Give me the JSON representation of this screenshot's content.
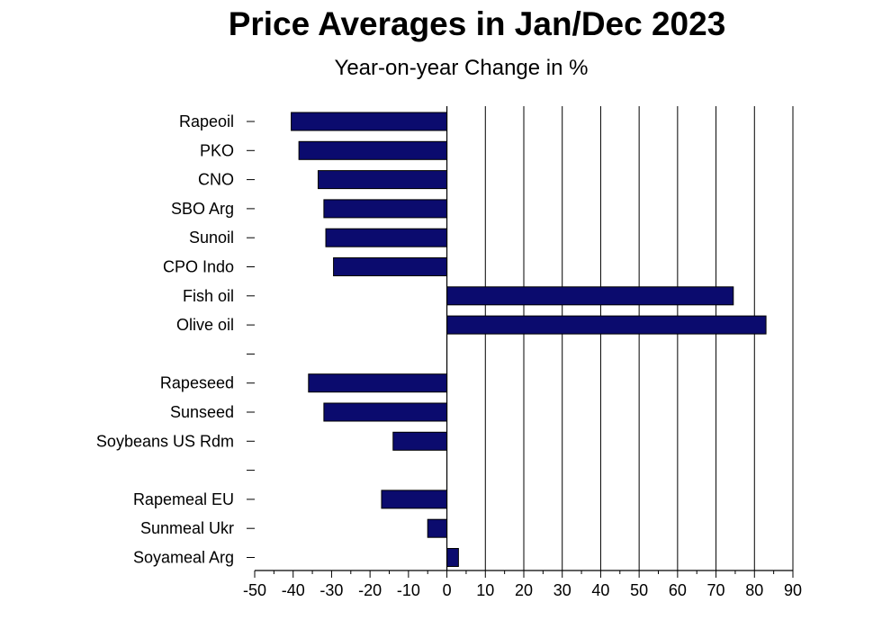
{
  "chart_data": {
    "type": "bar",
    "orientation": "horizontal",
    "title": "Price Averages  in Jan/Dec 2023",
    "subtitle": "Year-on-year Change in %",
    "xlabel": "",
    "ylabel": "",
    "categories": [
      "Rapeoil",
      "PKO",
      "CNO",
      "SBO Arg",
      "Sunoil",
      "CPO Indo",
      "Fish oil",
      "Olive oil",
      "",
      "Rapeseed",
      "Sunseed",
      "Soybeans US Rdm",
      "",
      "Rapemeal EU",
      "Sunmeal Ukr",
      "Soyameal Arg"
    ],
    "values": [
      -40.5,
      -38.5,
      -33.5,
      -32,
      -31.5,
      -29.5,
      74.5,
      83,
      null,
      -36,
      -32,
      -14,
      null,
      -17,
      -5,
      3
    ],
    "xlim": [
      -50,
      90
    ],
    "xticks": [
      "-50",
      "-40",
      "-30",
      "-20",
      "-10",
      "0",
      "10",
      "20",
      "30",
      "40",
      "50",
      "60",
      "70",
      "80",
      "90"
    ],
    "bar_color": "#0b0b6e",
    "grid": "vertical",
    "legend": "none"
  }
}
